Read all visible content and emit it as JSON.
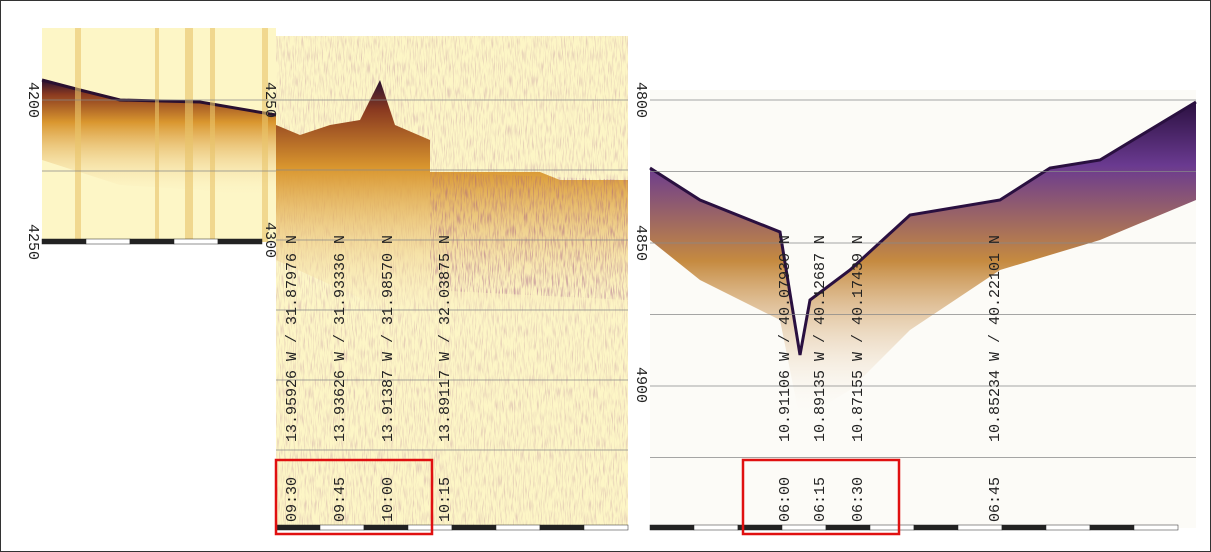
{
  "panels": [
    {
      "depth_labels": [
        "4200",
        "4250"
      ],
      "profile_labels": []
    },
    {
      "depth_labels": [
        "4250",
        "4300"
      ],
      "profile_labels": [
        {
          "coords": "13.95926 W /  31.87976 N",
          "time": "09:30"
        },
        {
          "coords": "13.93626 W /  31.93336 N",
          "time": "09:45"
        },
        {
          "coords": "13.91387 W /  31.98570 N",
          "time": "10:00"
        },
        {
          "coords": "13.89117 W /  32.03875 N",
          "time": "10:15"
        }
      ]
    },
    {
      "depth_labels": [
        "4800",
        "4850",
        "4900"
      ],
      "profile_labels": [
        {
          "coords": "10.91106 W /  40.07930 N",
          "time": "06:00"
        },
        {
          "coords": "10.89135 W /  40.12687 N",
          "time": "06:15"
        },
        {
          "coords": "10.87155 W /  40.17439 N",
          "time": "06:30"
        },
        {
          "coords": "10.85234 W /  40.22101 N",
          "time": "06:45"
        }
      ]
    }
  ]
}
